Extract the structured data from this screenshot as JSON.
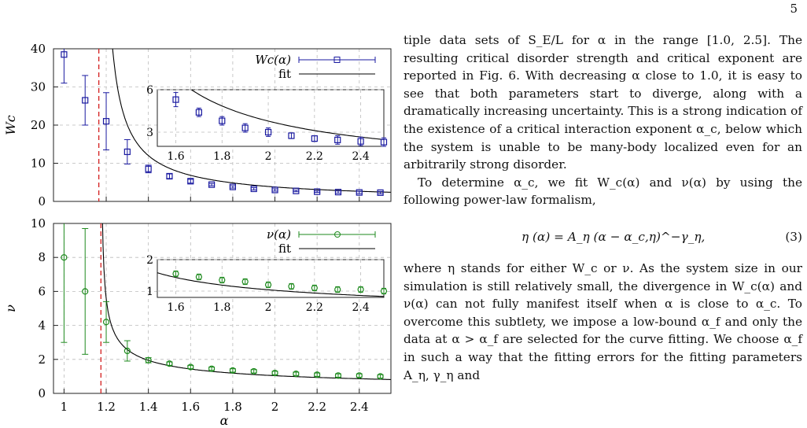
{
  "page_number": "5",
  "chart_data": [
    {
      "type": "scatter",
      "panel": "top",
      "ylabel": "W_c",
      "xlabel": "",
      "xlim": [
        0.95,
        2.55
      ],
      "ylim": [
        0,
        40
      ],
      "yticks": [
        0,
        10,
        20,
        30,
        40
      ],
      "xticks": [
        1.2,
        1.4,
        1.6,
        1.8,
        2,
        2.2,
        2.4
      ],
      "grid": true,
      "color": "#1a1aa0",
      "legend_position": "top-right",
      "legend": [
        "W_c(α)",
        "fit"
      ],
      "critical_alpha": 1.165,
      "points": [
        {
          "x": 1.0,
          "y": 38.5,
          "err": 7.5
        },
        {
          "x": 1.1,
          "y": 26.5,
          "err": 6.5
        },
        {
          "x": 1.2,
          "y": 21.0,
          "err": 7.5
        },
        {
          "x": 1.3,
          "y": 13.0,
          "err": 3.2
        },
        {
          "x": 1.4,
          "y": 8.5,
          "err": 1.0
        },
        {
          "x": 1.5,
          "y": 6.6,
          "err": 0.6
        },
        {
          "x": 1.6,
          "y": 5.3,
          "err": 0.5
        },
        {
          "x": 1.7,
          "y": 4.4,
          "err": 0.3
        },
        {
          "x": 1.8,
          "y": 3.8,
          "err": 0.3
        },
        {
          "x": 1.9,
          "y": 3.3,
          "err": 0.3
        },
        {
          "x": 2.0,
          "y": 3.0,
          "err": 0.3
        },
        {
          "x": 2.1,
          "y": 2.75,
          "err": 0.2
        },
        {
          "x": 2.2,
          "y": 2.55,
          "err": 0.2
        },
        {
          "x": 2.3,
          "y": 2.45,
          "err": 0.3
        },
        {
          "x": 2.4,
          "y": 2.35,
          "err": 0.3
        },
        {
          "x": 2.5,
          "y": 2.3,
          "err": 0.3
        }
      ],
      "fit": {
        "A": 3.2,
        "alpha_c": 1.17,
        "gamma": 0.9
      },
      "inset": {
        "xlim": [
          1.52,
          2.5
        ],
        "ylim": [
          2.0,
          6.0
        ],
        "xticks": [
          1.6,
          1.8,
          2,
          2.2,
          2.4
        ],
        "xtick_labels": [
          "1.6",
          "1.8",
          "2",
          "2.2",
          "2.4"
        ],
        "yticks": [
          3,
          6
        ],
        "ytick_labels": [
          "3",
          "6"
        ],
        "min_x": 1.6
      }
    },
    {
      "type": "scatter",
      "panel": "bottom",
      "ylabel": "ν",
      "xlabel": "α",
      "xlim": [
        0.95,
        2.55
      ],
      "ylim": [
        0,
        10
      ],
      "yticks": [
        0,
        2,
        4,
        6,
        8,
        10
      ],
      "xticks": [
        1,
        1.2,
        1.4,
        1.6,
        1.8,
        2,
        2.2,
        2.4
      ],
      "xtick_labels": [
        "1",
        "1.2",
        "1.4",
        "1.6",
        "1.8",
        "2",
        "2.2",
        "2.4"
      ],
      "grid": true,
      "color": "#1e8a1e",
      "legend_position": "top-right",
      "legend": [
        "ν(α)",
        "fit"
      ],
      "critical_alpha": 1.175,
      "points": [
        {
          "x": 1.0,
          "y": 8.0,
          "err": 5.0
        },
        {
          "x": 1.1,
          "y": 6.0,
          "err": 3.7
        },
        {
          "x": 1.2,
          "y": 4.2,
          "err": 1.2
        },
        {
          "x": 1.3,
          "y": 2.5,
          "err": 0.6
        },
        {
          "x": 1.4,
          "y": 1.95,
          "err": 0.15
        },
        {
          "x": 1.5,
          "y": 1.75,
          "err": 0.1
        },
        {
          "x": 1.6,
          "y": 1.55,
          "err": 0.1
        },
        {
          "x": 1.7,
          "y": 1.45,
          "err": 0.1
        },
        {
          "x": 1.8,
          "y": 1.35,
          "err": 0.1
        },
        {
          "x": 1.9,
          "y": 1.3,
          "err": 0.1
        },
        {
          "x": 2.0,
          "y": 1.2,
          "err": 0.1
        },
        {
          "x": 2.1,
          "y": 1.15,
          "err": 0.1
        },
        {
          "x": 2.2,
          "y": 1.1,
          "err": 0.1
        },
        {
          "x": 2.3,
          "y": 1.05,
          "err": 0.1
        },
        {
          "x": 2.4,
          "y": 1.05,
          "err": 0.1
        },
        {
          "x": 2.5,
          "y": 1.0,
          "err": 0.1
        }
      ],
      "fit": {
        "A": 0.95,
        "alpha_c": 1.175,
        "gamma": 0.48
      },
      "inset": {
        "xlim": [
          1.52,
          2.5
        ],
        "ylim": [
          0.8,
          2.0
        ],
        "xticks": [
          1.6,
          1.8,
          2,
          2.2,
          2.4
        ],
        "xtick_labels": [
          "1.6",
          "1.8",
          "2",
          "2.2",
          "2.4"
        ],
        "yticks": [
          1,
          2
        ],
        "ytick_labels": [
          "1",
          "2"
        ],
        "min_x": 1.6
      }
    }
  ],
  "text": {
    "p1": "tiple data sets of S_E/L for α in the range [1.0, 2.5]. The resulting critical disorder strength and critical exponent are reported in Fig. 6. With decreasing α close to 1.0, it is easy to see that both parameters start to diverge, along with a dramatically increasing uncertainty. This is a strong indication of the existence of a critical interaction exponent α_c, below which the system is unable to be many-body localized even for an arbitrarily strong disorder.",
    "p2": "To determine α_c, we fit W_c(α) and ν(α) by using the following power-law formalism,",
    "equation": "η (α) = A_η (α − α_c,η)^−γ_η,",
    "equation_number": "(3)",
    "p3": "where η stands for either W_c or ν. As the system size in our simulation is still relatively small, the divergence in W_c(α) and ν(α) can not fully manifest itself when α is close to α_c. To overcome this subtlety, we impose a low-bound α_f and only the data at α > α_f are selected for the curve fitting. We choose α_f in such a way that the fitting errors for the fitting parameters A_η, γ_η and"
  }
}
